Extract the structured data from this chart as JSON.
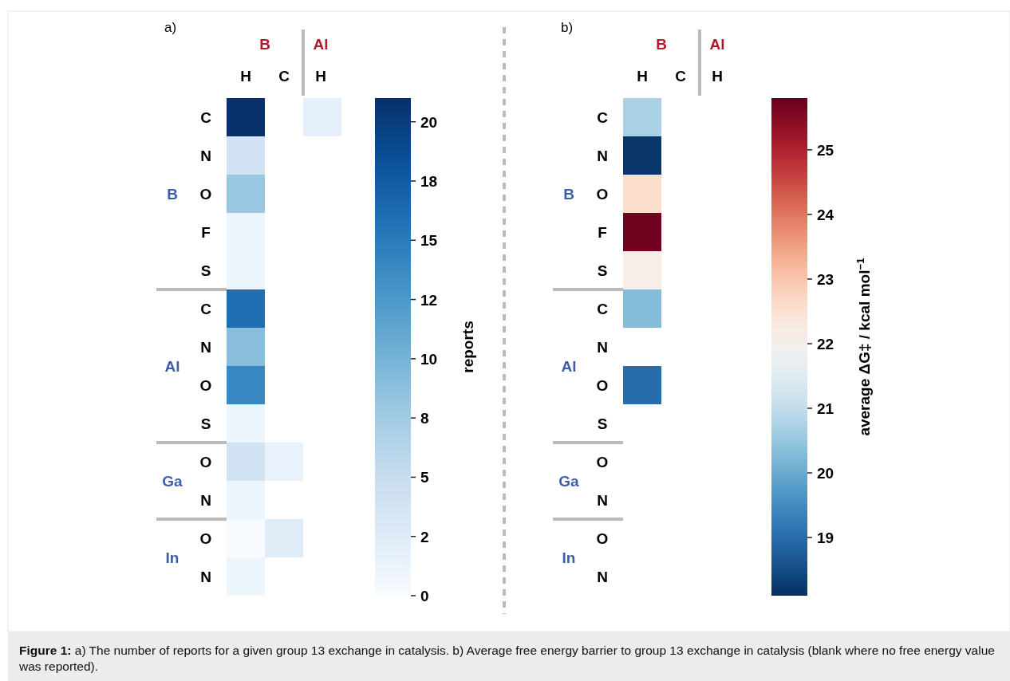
{
  "chart_data": [
    {
      "type": "heatmap",
      "title": "a)",
      "categories": [
        "H",
        "C",
        "H"
      ],
      "y_categories": [
        "C",
        "N",
        "O",
        "F",
        "S",
        "C",
        "N",
        "O",
        "S",
        "O",
        "N",
        "O",
        "N"
      ],
      "cells": [
        [
          21,
          null,
          2
        ],
        [
          4,
          null,
          null
        ],
        [
          8,
          null,
          null
        ],
        [
          1,
          null,
          null
        ],
        [
          1,
          null,
          null
        ],
        [
          16,
          null,
          null
        ],
        [
          9,
          null,
          null
        ],
        [
          14,
          null,
          null
        ],
        [
          1,
          null,
          null
        ],
        [
          4,
          1.5,
          null
        ],
        [
          1,
          null,
          null
        ],
        [
          0,
          2.5,
          null
        ],
        [
          1,
          null,
          null
        ]
      ],
      "clim": [
        0,
        21
      ],
      "cticks": [
        {
          "value": 0,
          "label": "0"
        },
        {
          "value": 2.5,
          "label": "2"
        },
        {
          "value": 5,
          "label": "5"
        },
        {
          "value": 7.5,
          "label": "8"
        },
        {
          "value": 10,
          "label": "10"
        },
        {
          "value": 12.5,
          "label": "12"
        },
        {
          "value": 15,
          "label": "15"
        },
        {
          "value": 17.5,
          "label": "18"
        },
        {
          "value": 20,
          "label": "20"
        }
      ],
      "clabel": "reports",
      "annotations": [
        "B",
        "Al",
        "B",
        "Al",
        "Ga",
        "In"
      ]
    },
    {
      "type": "heatmap",
      "title": "b)",
      "categories": [
        "H",
        "C",
        "H"
      ],
      "y_categories": [
        "C",
        "N",
        "O",
        "F",
        "S",
        "C",
        "N",
        "O",
        "S",
        "O",
        "N",
        "O",
        "N"
      ],
      "cells": [
        [
          20.7,
          null,
          null
        ],
        [
          18.2,
          null,
          null
        ],
        [
          22.6,
          null,
          null
        ],
        [
          25.7,
          null,
          null
        ],
        [
          22.1,
          null,
          null
        ],
        [
          20.3,
          null,
          null
        ],
        [
          null,
          null,
          null
        ],
        [
          19.0,
          null,
          null
        ],
        [
          null,
          null,
          null
        ],
        [
          null,
          null,
          null
        ],
        [
          null,
          null,
          null
        ],
        [
          null,
          null,
          null
        ],
        [
          null,
          null,
          null
        ]
      ],
      "clim": [
        18.1,
        25.8
      ],
      "cticks": [
        19,
        20,
        21,
        22,
        23,
        24,
        25
      ],
      "clabel": "average ΔG‡ / kcal mol$^{−1}$",
      "annotations": [
        "B",
        "Al",
        "B",
        "Al",
        "Ga",
        "In",
        "Figure 1: a) The number of reports for a given group 13 exchange in catalysis. b) Average free energy barrier to group 13 exchange in catalysis (blank where no free energy value was reported)."
      ]
    }
  ]
}
